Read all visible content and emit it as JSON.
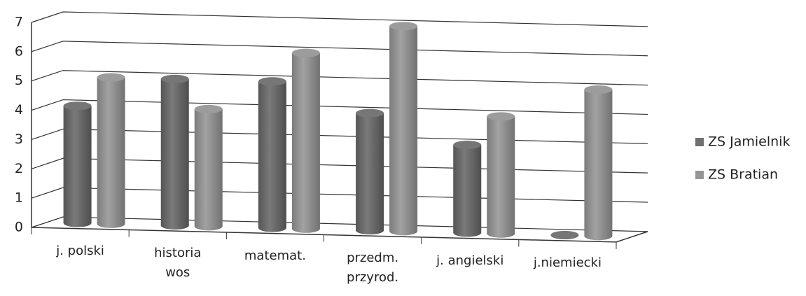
{
  "chart_data": {
    "type": "bar",
    "categories": [
      "j. polski",
      "historia\nwos",
      "matemat.",
      "przedm.\nprzyrod.",
      "j. angielski",
      "j.niemiecki"
    ],
    "series": [
      {
        "name": "ZS Jamielnik",
        "color": "#6f6f6f",
        "values": [
          4,
          5,
          5,
          4,
          3,
          0
        ]
      },
      {
        "name": "ZS Bratian",
        "color": "#959595",
        "values": [
          5,
          4,
          6,
          7,
          4,
          5
        ]
      }
    ],
    "ylim": [
      0,
      7
    ],
    "yticks": [
      0,
      1,
      2,
      3,
      4,
      5,
      6,
      7
    ],
    "grid": true,
    "legend": "right"
  }
}
